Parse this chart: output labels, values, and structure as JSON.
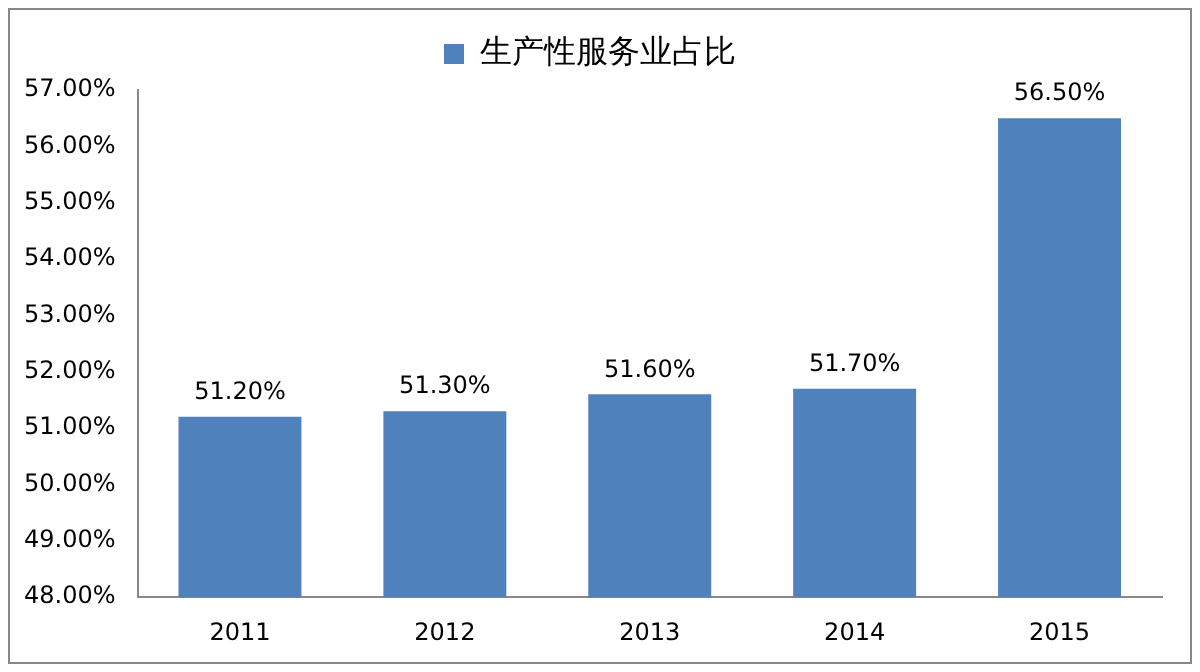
{
  "chart_data": {
    "type": "bar",
    "categories": [
      "2011",
      "2012",
      "2013",
      "2014",
      "2015"
    ],
    "series": [
      {
        "name": "生产性服务业占比",
        "color": "#4f81bd",
        "values": [
          51.2,
          51.3,
          51.6,
          51.7,
          56.5
        ],
        "value_labels": [
          "51.20%",
          "51.30%",
          "51.60%",
          "51.70%",
          "56.50%"
        ]
      }
    ],
    "ylim": [
      48,
      57
    ],
    "yticks": [
      {
        "value": 48,
        "label": "48.00%"
      },
      {
        "value": 49,
        "label": "49.00%"
      },
      {
        "value": 50,
        "label": "50.00%"
      },
      {
        "value": 51,
        "label": "51.00%"
      },
      {
        "value": 52,
        "label": "52.00%"
      },
      {
        "value": 53,
        "label": "53.00%"
      },
      {
        "value": 54,
        "label": "54.00%"
      },
      {
        "value": 55,
        "label": "55.00%"
      },
      {
        "value": 56,
        "label": "56.00%"
      },
      {
        "value": 57,
        "label": "57.00%"
      }
    ],
    "grid": false,
    "legend": "top"
  }
}
